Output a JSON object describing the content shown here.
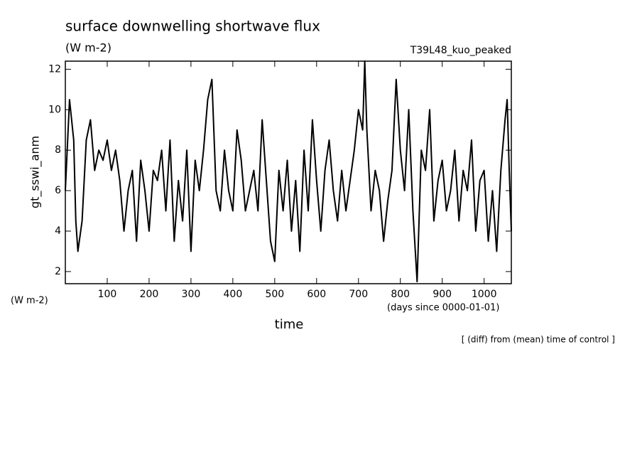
{
  "chart_data": {
    "type": "line",
    "title": "surface downwelling shortwave flux",
    "subtitle": "(W m-2)",
    "run_label": "T39L48_kuo_peaked",
    "ylabel": "gt_sswi_anm",
    "y_unit": "(W m-2)",
    "xlabel": "time",
    "x_unit": "(days since 0000-01-01)",
    "footer": "[ (diff) from (mean) time of control ]",
    "xlim": [
      0,
      1065
    ],
    "ylim": [
      1.4,
      12.4
    ],
    "xticks": [
      100,
      200,
      300,
      400,
      500,
      600,
      700,
      800,
      900,
      1000
    ],
    "yticks": [
      2,
      4,
      6,
      8,
      10,
      12
    ],
    "x": [
      0,
      10,
      20,
      25,
      30,
      40,
      50,
      60,
      70,
      80,
      90,
      100,
      110,
      120,
      130,
      140,
      150,
      160,
      170,
      180,
      190,
      200,
      210,
      220,
      230,
      240,
      250,
      260,
      270,
      280,
      290,
      300,
      310,
      320,
      330,
      340,
      350,
      360,
      370,
      380,
      390,
      400,
      410,
      420,
      430,
      440,
      450,
      460,
      470,
      480,
      490,
      500,
      510,
      520,
      530,
      540,
      550,
      560,
      570,
      580,
      590,
      600,
      610,
      620,
      630,
      640,
      650,
      660,
      670,
      680,
      690,
      700,
      710,
      715,
      720,
      730,
      740,
      750,
      760,
      770,
      780,
      790,
      800,
      810,
      820,
      830,
      840,
      850,
      860,
      870,
      880,
      890,
      900,
      910,
      920,
      930,
      940,
      950,
      960,
      970,
      980,
      990,
      1000,
      1010,
      1020,
      1030,
      1040,
      1050,
      1055,
      1060,
      1065
    ],
    "series": [
      {
        "name": "gt_sswi_anm",
        "color": "#000000",
        "values": [
          6,
          10.5,
          8.5,
          4.5,
          3,
          4.5,
          8.5,
          9.5,
          7,
          8,
          7.5,
          8.5,
          7,
          8,
          6.5,
          4,
          6,
          7,
          3.5,
          7.5,
          6,
          4,
          7,
          6.5,
          8,
          5,
          8.5,
          3.5,
          6.5,
          4.5,
          8,
          3,
          7.5,
          6,
          8,
          10.5,
          11.5,
          6,
          5,
          8,
          6,
          5,
          9,
          7.5,
          5,
          6,
          7,
          5,
          9.5,
          6.5,
          3.5,
          2.5,
          7,
          5,
          7.5,
          4,
          6.5,
          3,
          8,
          5,
          9.5,
          6.5,
          4,
          7,
          8.5,
          6,
          4.5,
          7,
          5,
          6.5,
          8,
          10,
          9,
          12.4,
          9,
          5,
          7,
          6,
          3.5,
          5.5,
          7,
          11.5,
          8,
          6,
          10,
          5,
          1.5,
          8,
          7,
          10,
          4.5,
          6.5,
          7.5,
          5,
          6,
          8,
          4.5,
          7,
          6,
          8.5,
          4,
          6.5,
          7,
          3.5,
          6,
          3,
          7,
          9.5,
          10.5,
          7,
          4
        ]
      }
    ]
  }
}
